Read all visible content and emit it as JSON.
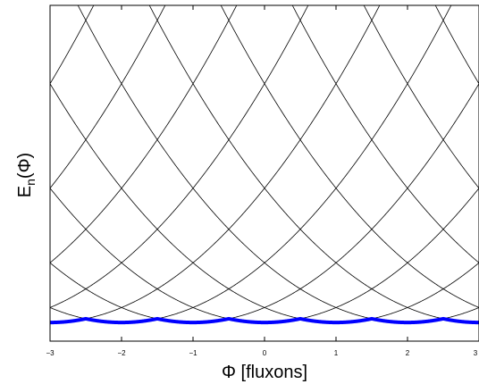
{
  "chart_data": {
    "type": "line",
    "xlabel": "Φ [fluxons]",
    "ylabel_main": "E",
    "ylabel_sub": "n",
    "ylabel_arg": "(Φ)",
    "xlim": [
      -3,
      3
    ],
    "ylim": [
      0,
      4.5
    ],
    "xticks": [
      -3,
      -2,
      -1,
      0,
      1,
      2,
      3
    ],
    "yticks": [],
    "grid": false,
    "legend": "none",
    "series_description": "parabolas E = (Φ - n)^2 for integer n",
    "n_values": [
      -8,
      -7,
      -6,
      -5,
      -4,
      -3,
      -2,
      -1,
      0,
      1,
      2,
      3,
      4,
      5,
      6,
      7,
      8
    ],
    "parabola_scale": 0.2,
    "ground_state_offset": 0.25,
    "curve_color": "#000000",
    "ground_state_color": "#0000ff"
  }
}
